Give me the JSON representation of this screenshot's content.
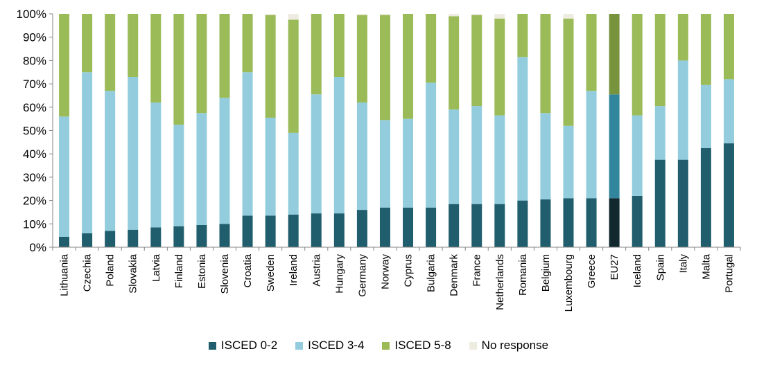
{
  "chart_data": {
    "type": "bar",
    "stacked": true,
    "title": "",
    "xlabel": "",
    "ylabel": "",
    "ylim": [
      0,
      100
    ],
    "yticks": [
      "0%",
      "10%",
      "20%",
      "30%",
      "40%",
      "50%",
      "60%",
      "70%",
      "80%",
      "90%",
      "100%"
    ],
    "categories": [
      "Lithuania",
      "Czechia",
      "Poland",
      "Slovakia",
      "Latvia",
      "Finland",
      "Estonia",
      "Slovenia",
      "Croatia",
      "Sweden",
      "Ireland",
      "Austria",
      "Hungary",
      "Germany",
      "Norway",
      "Cyprus",
      "Bulgaria",
      "Denmark",
      "France",
      "Netherlands",
      "Romania",
      "Belgium",
      "Luxembourg",
      "Greece",
      "EU27",
      "Iceland",
      "Spain",
      "Italy",
      "Malta",
      "Portugal"
    ],
    "highlight_category": "EU27",
    "series": [
      {
        "name": "ISCED 0-2",
        "color": "#215e6d",
        "highlight_color": "#11282f",
        "values": [
          4.5,
          6,
          7,
          7.5,
          8.5,
          9,
          9.5,
          10,
          13.5,
          13.5,
          14,
          14.5,
          14.5,
          16,
          17,
          17,
          17,
          18.5,
          18.5,
          18.5,
          20,
          20.5,
          21,
          21,
          21,
          22,
          37.5,
          37.5,
          42.5,
          44.5
        ]
      },
      {
        "name": "ISCED 3-4",
        "color": "#93cddd",
        "highlight_color": "#31859c",
        "values": [
          51.5,
          69,
          60,
          65.5,
          53.5,
          43.5,
          48,
          54,
          61.5,
          42,
          35,
          51,
          58.5,
          46,
          37.5,
          38,
          53.5,
          40.5,
          42,
          38,
          61.5,
          37,
          31,
          46,
          44.5,
          34.5,
          23,
          42.5,
          27,
          27.5
        ]
      },
      {
        "name": "ISCED 5-8",
        "color": "#9bbb59",
        "highlight_color": "#77933c",
        "values": [
          44,
          25,
          33,
          27,
          38,
          47.5,
          42.5,
          36,
          25,
          44,
          48.5,
          34.5,
          27,
          37.5,
          45,
          45,
          29.5,
          40,
          39,
          41.5,
          18.5,
          42.5,
          46,
          33,
          34.5,
          43.5,
          39.5,
          20,
          30.5,
          28
        ]
      },
      {
        "name": "No response",
        "color": "#eeece1",
        "highlight_color": "#eeece1",
        "values": [
          0,
          0,
          0,
          0,
          0,
          0,
          0,
          0,
          0,
          0.5,
          2.5,
          0,
          0,
          0.5,
          0.5,
          0,
          0,
          1,
          0.5,
          2,
          0,
          0,
          2,
          0,
          0,
          0,
          0,
          0,
          0,
          0
        ]
      }
    ],
    "legend_position": "bottom-center",
    "grid": false
  }
}
